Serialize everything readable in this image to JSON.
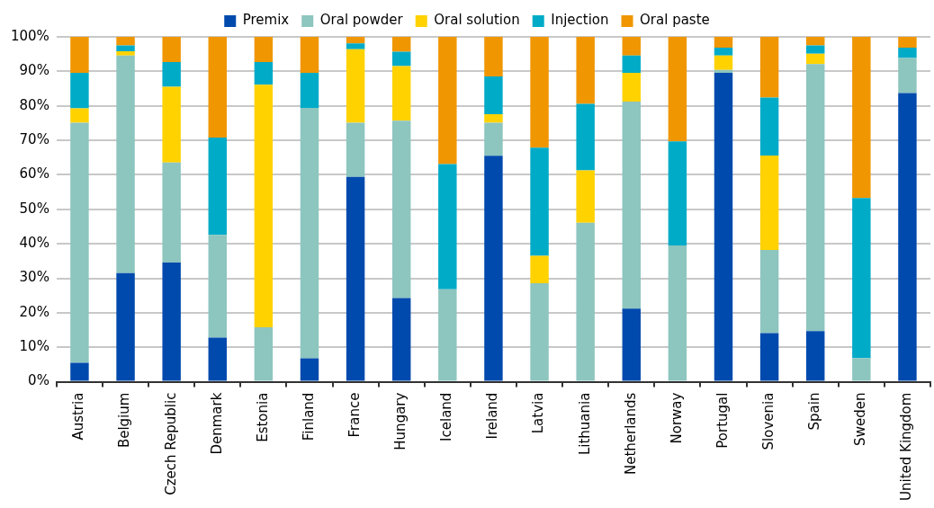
{
  "chart_data": {
    "type": "bar",
    "stacked": true,
    "legend": "top",
    "grid": "y",
    "categories": [
      "Austria",
      "Belgium",
      "Czech Republic",
      "Denmark",
      "Estonia",
      "Finland",
      "France",
      "Hungary",
      "Iceland",
      "Ireland",
      "Latvia",
      "Lithuania",
      "Netherlands",
      "Norway",
      "Portugal",
      "Slovenia",
      "Spain",
      "Sweden",
      "United Kingdom"
    ],
    "series": [
      {
        "name": "Premix",
        "color": "#004aad",
        "values": [
          5.5,
          31.5,
          34.6,
          12.8,
          0,
          6.8,
          59.4,
          24.3,
          0,
          65.5,
          0,
          0,
          21.2,
          0,
          89.6,
          14.1,
          14.7,
          0,
          83.7
        ]
      },
      {
        "name": "Oral powder",
        "color": "#8dc5bf",
        "values": [
          69.6,
          63.1,
          29.0,
          29.8,
          15.8,
          72.6,
          15.7,
          51.4,
          26.8,
          9.6,
          28.6,
          46.1,
          60.0,
          39.5,
          0.8,
          24.1,
          77.4,
          6.9,
          10.2
        ]
      },
      {
        "name": "Oral solution",
        "color": "#ffd200",
        "values": [
          4.2,
          1.2,
          21.9,
          0,
          70.3,
          0,
          21.3,
          15.8,
          0,
          2.5,
          7.9,
          15.2,
          8.4,
          0,
          4.2,
          27.4,
          3.0,
          0,
          0
        ]
      },
      {
        "name": "Injection",
        "color": "#00abc8",
        "values": [
          10.3,
          1.7,
          7.2,
          28.2,
          6.6,
          10.2,
          1.7,
          4.2,
          36.3,
          10.9,
          31.4,
          19.3,
          5.0,
          30.2,
          2.3,
          16.8,
          2.4,
          46.4,
          3.0
        ]
      },
      {
        "name": "Oral paste",
        "color": "#f09600",
        "values": [
          10.4,
          2.5,
          7.3,
          29.2,
          7.3,
          10.4,
          1.9,
          4.3,
          36.9,
          11.5,
          32.1,
          19.4,
          5.4,
          30.3,
          3.1,
          17.6,
          2.5,
          46.7,
          3.1
        ]
      }
    ],
    "ylim": [
      0,
      100
    ],
    "yticks": [
      {
        "value": 0,
        "label": "0%"
      },
      {
        "value": 10,
        "label": "10%"
      },
      {
        "value": 20,
        "label": "20%"
      },
      {
        "value": 30,
        "label": "30%"
      },
      {
        "value": 40,
        "label": "40%"
      },
      {
        "value": 50,
        "label": "50%"
      },
      {
        "value": 60,
        "label": "60%"
      },
      {
        "value": 70,
        "label": "70%"
      },
      {
        "value": 80,
        "label": "80%"
      },
      {
        "value": 90,
        "label": "90%"
      },
      {
        "value": 100,
        "label": "100%"
      }
    ]
  }
}
